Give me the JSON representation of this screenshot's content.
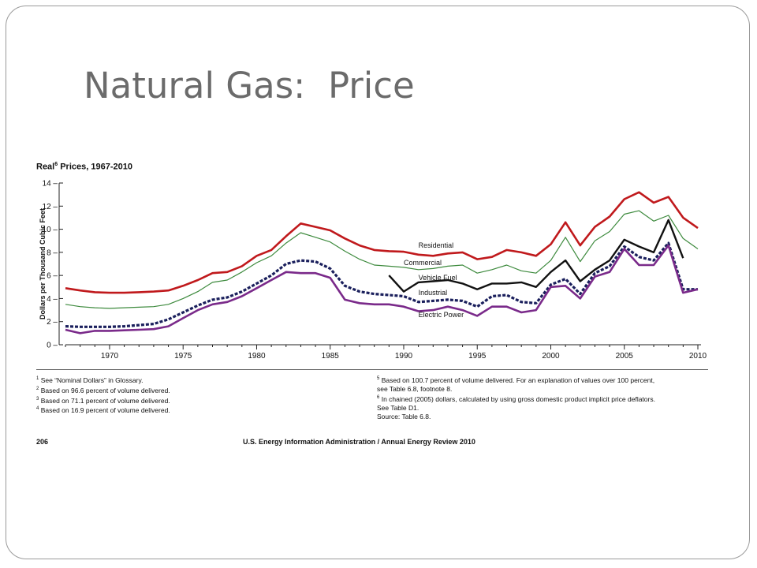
{
  "slide": {
    "title": "Natural Gas:  Price"
  },
  "chart_data": {
    "type": "line",
    "title": "Prices, 1967-2010",
    "title_prefix": "Real",
    "title_sup": "6",
    "ylabel": "Dollars per Thousand Cubic Feet",
    "xlabel": "",
    "xlim": [
      1967,
      2010
    ],
    "ylim": [
      0,
      14
    ],
    "yticks": [
      0,
      2,
      4,
      6,
      8,
      10,
      12,
      14
    ],
    "xticks": [
      1970,
      1975,
      1980,
      1985,
      1990,
      1995,
      2000,
      2005,
      2010
    ],
    "grid": false,
    "series": [
      {
        "name": "Residential",
        "color": "#c0191c",
        "style": "solid",
        "width": 2.6,
        "x": [
          1967,
          1968,
          1969,
          1970,
          1971,
          1972,
          1973,
          1974,
          1975,
          1976,
          1977,
          1978,
          1979,
          1980,
          1981,
          1982,
          1983,
          1984,
          1985,
          1986,
          1987,
          1988,
          1989,
          1990,
          1991,
          1992,
          1993,
          1994,
          1995,
          1996,
          1997,
          1998,
          1999,
          2000,
          2001,
          2002,
          2003,
          2004,
          2005,
          2006,
          2007,
          2008,
          2009,
          2010
        ],
        "y": [
          4.9,
          4.7,
          4.55,
          4.5,
          4.5,
          4.55,
          4.6,
          4.7,
          5.1,
          5.6,
          6.2,
          6.3,
          6.8,
          7.7,
          8.2,
          9.4,
          10.5,
          10.2,
          9.9,
          9.2,
          8.6,
          8.2,
          8.1,
          8.05,
          7.8,
          7.7,
          7.9,
          8.0,
          7.4,
          7.6,
          8.2,
          8.0,
          7.7,
          8.7,
          10.6,
          8.6,
          10.2,
          11.1,
          12.6,
          13.2,
          12.3,
          12.8,
          11.0,
          10.1
        ]
      },
      {
        "name": "Commercial",
        "color": "#3d8a3d",
        "style": "solid",
        "width": 1.2,
        "x": [
          1967,
          1968,
          1969,
          1970,
          1971,
          1972,
          1973,
          1974,
          1975,
          1976,
          1977,
          1978,
          1979,
          1980,
          1981,
          1982,
          1983,
          1984,
          1985,
          1986,
          1987,
          1988,
          1989,
          1990,
          1991,
          1992,
          1993,
          1994,
          1995,
          1996,
          1997,
          1998,
          1999,
          2000,
          2001,
          2002,
          2003,
          2004,
          2005,
          2006,
          2007,
          2008,
          2009,
          2010
        ],
        "y": [
          3.5,
          3.3,
          3.2,
          3.15,
          3.2,
          3.25,
          3.3,
          3.5,
          4.0,
          4.6,
          5.4,
          5.6,
          6.3,
          7.1,
          7.7,
          8.8,
          9.7,
          9.3,
          8.9,
          8.1,
          7.4,
          6.9,
          6.8,
          6.7,
          6.5,
          6.6,
          6.8,
          6.9,
          6.2,
          6.5,
          6.9,
          6.4,
          6.2,
          7.3,
          9.3,
          7.2,
          9.0,
          9.8,
          11.3,
          11.6,
          10.7,
          11.2,
          9.2,
          8.3
        ]
      },
      {
        "name": "Vehicle Fuel",
        "color": "#111111",
        "style": "solid",
        "width": 2.4,
        "x": [
          1989,
          1990,
          1991,
          1992,
          1993,
          1994,
          1995,
          1996,
          1997,
          1998,
          1999,
          2000,
          2001,
          2002,
          2003,
          2004,
          2005,
          2006,
          2007,
          2008,
          2009
        ],
        "y": [
          6.0,
          4.6,
          5.4,
          5.5,
          5.6,
          5.3,
          4.8,
          5.3,
          5.3,
          5.4,
          5.0,
          6.3,
          7.3,
          5.5,
          6.5,
          7.3,
          9.1,
          8.5,
          8.0,
          10.8,
          7.5
        ]
      },
      {
        "name": "Industrial",
        "color": "#1a1f5c",
        "style": "dashed",
        "width": 3.2,
        "x": [
          1967,
          1968,
          1969,
          1970,
          1971,
          1972,
          1973,
          1974,
          1975,
          1976,
          1977,
          1978,
          1979,
          1980,
          1981,
          1982,
          1983,
          1984,
          1985,
          1986,
          1987,
          1988,
          1989,
          1990,
          1991,
          1992,
          1993,
          1994,
          1995,
          1996,
          1997,
          1998,
          1999,
          2000,
          2001,
          2002,
          2003,
          2004,
          2005,
          2006,
          2007,
          2008,
          2009,
          2010
        ],
        "y": [
          1.6,
          1.55,
          1.55,
          1.55,
          1.6,
          1.7,
          1.8,
          2.2,
          2.8,
          3.4,
          3.9,
          4.1,
          4.6,
          5.3,
          6.0,
          7.0,
          7.3,
          7.2,
          6.6,
          5.1,
          4.6,
          4.4,
          4.3,
          4.2,
          3.7,
          3.8,
          3.9,
          3.8,
          3.3,
          4.2,
          4.3,
          3.7,
          3.6,
          5.2,
          5.7,
          4.4,
          6.2,
          6.8,
          8.5,
          7.6,
          7.3,
          8.8,
          4.8,
          4.8
        ]
      },
      {
        "name": "Electric Power",
        "color": "#7a2a8a",
        "style": "solid",
        "width": 2.6,
        "x": [
          1967,
          1968,
          1969,
          1970,
          1971,
          1972,
          1973,
          1974,
          1975,
          1976,
          1977,
          1978,
          1979,
          1980,
          1981,
          1982,
          1983,
          1984,
          1985,
          1986,
          1987,
          1988,
          1989,
          1990,
          1991,
          1992,
          1993,
          1994,
          1995,
          1996,
          1997,
          1998,
          1999,
          2000,
          2001,
          2002,
          2003,
          2004,
          2005,
          2006,
          2007,
          2008,
          2009,
          2010
        ],
        "y": [
          1.3,
          1.0,
          1.2,
          1.2,
          1.25,
          1.3,
          1.35,
          1.6,
          2.3,
          3.0,
          3.5,
          3.7,
          4.2,
          4.9,
          5.6,
          6.3,
          6.2,
          6.2,
          5.8,
          3.9,
          3.6,
          3.5,
          3.5,
          3.3,
          2.9,
          3.0,
          3.3,
          3.0,
          2.5,
          3.3,
          3.3,
          2.8,
          3.0,
          5.0,
          5.1,
          4.0,
          5.9,
          6.3,
          8.3,
          6.9,
          6.9,
          8.6,
          4.5,
          4.8
        ]
      }
    ]
  },
  "footnotes": {
    "left": [
      {
        "sup": "1",
        "text": " See “Nominal Dollars” in Glossary."
      },
      {
        "sup": "2",
        "text": " Based on 96.6 percent of volume delivered."
      },
      {
        "sup": "3",
        "text": " Based on 71.1 percent of volume delivered."
      },
      {
        "sup": "4",
        "text": " Based on 16.9 percent of volume delivered."
      }
    ],
    "right": [
      {
        "sup": "5",
        "text": " Based on 100.7 percent of volume delivered.  For an explanation of values over 100 percent,"
      },
      {
        "sup": "",
        "text": "see Table 6.8, footnote 8."
      },
      {
        "sup": "6",
        "text": " In chained (2005) dollars, calculated by using gross domestic product implicit price deflators."
      },
      {
        "sup": "",
        "text": "See Table D1."
      },
      {
        "sup": "",
        "text": "Source:  Table 6.8."
      }
    ]
  },
  "page_footer": {
    "page_number": "206",
    "publication": "U.S. Energy Information Administration / Annual Energy Review 2010"
  }
}
